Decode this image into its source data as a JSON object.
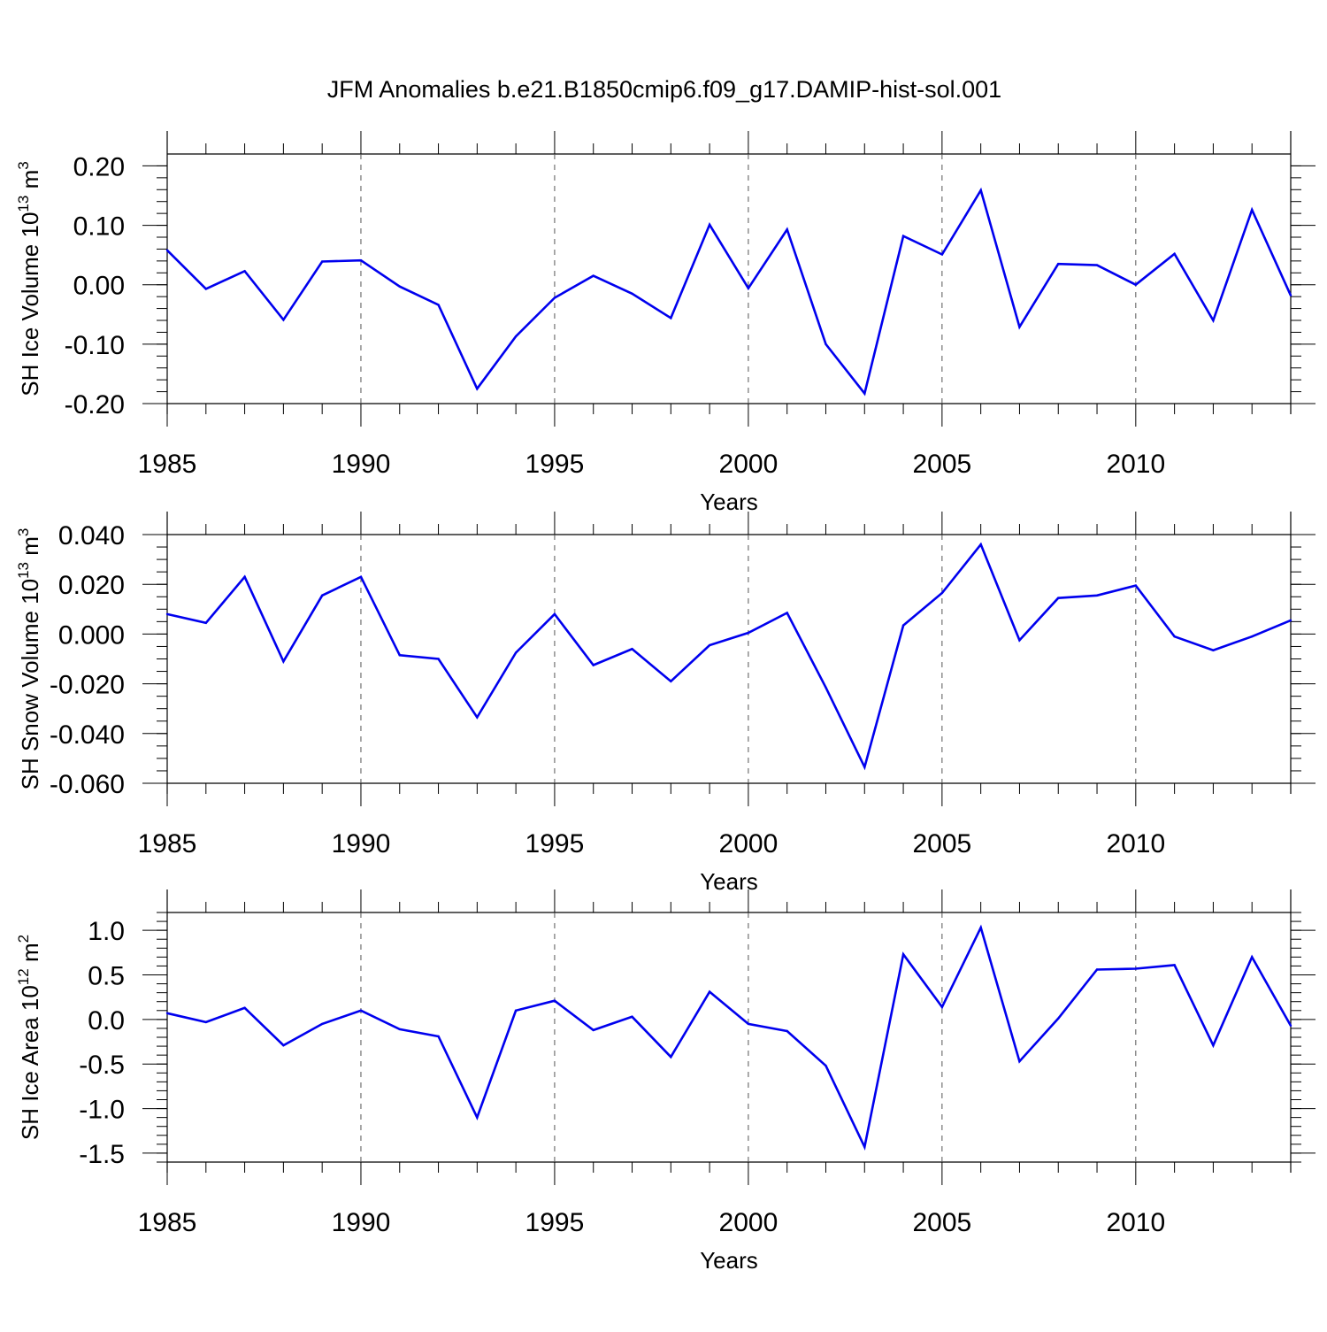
{
  "figure": {
    "title": "JFM Anomalies b.e21.B1850cmip6.f09_g17.DAMIP-hist-sol.001"
  },
  "colors": {
    "series": "#0000ee",
    "axis": "#000000",
    "grid": "#555555"
  },
  "chart_data": [
    {
      "type": "line",
      "id": "ice-volume",
      "title": "",
      "xlabel": "Years",
      "ylabel": "SH Ice Volume 10",
      "ylabel_exp": "13",
      "ylabel_unit": " m",
      "ylabel_unit_exp": "3",
      "xlim": [
        1985,
        2014
      ],
      "ylim": [
        -0.2,
        0.22
      ],
      "xticks": [
        1985,
        1990,
        1995,
        2000,
        2005,
        2010
      ],
      "xtick_labels": [
        "1985",
        "1990",
        "1995",
        "2000",
        "2005",
        "2010"
      ],
      "yticks": [
        -0.2,
        -0.1,
        0.0,
        0.1,
        0.2
      ],
      "ytick_labels": [
        "-0.20",
        "-0.10",
        "0.00",
        "0.10",
        "0.20"
      ],
      "grid_x": [
        1990,
        1995,
        2000,
        2005,
        2010
      ],
      "x": [
        1985,
        1986,
        1987,
        1988,
        1989,
        1990,
        1991,
        1992,
        1993,
        1994,
        1995,
        1996,
        1997,
        1998,
        1999,
        2000,
        2001,
        2002,
        2003,
        2004,
        2005,
        2006,
        2007,
        2008,
        2009,
        2010,
        2011,
        2012,
        2013,
        2014
      ],
      "series": [
        {
          "name": "SH Ice Volume",
          "values": [
            0.058,
            -0.007,
            0.023,
            -0.059,
            0.039,
            0.041,
            -0.003,
            -0.034,
            -0.175,
            -0.087,
            -0.022,
            0.015,
            -0.015,
            -0.056,
            0.101,
            -0.006,
            0.093,
            -0.1,
            -0.183,
            0.082,
            0.051,
            0.159,
            -0.071,
            0.035,
            0.033,
            0.0,
            0.052,
            -0.06,
            0.126,
            -0.018
          ]
        }
      ]
    },
    {
      "type": "line",
      "id": "snow-volume",
      "title": "",
      "xlabel": "Years",
      "ylabel": "SH Snow Volume 10",
      "ylabel_exp": "13",
      "ylabel_unit": " m",
      "ylabel_unit_exp": "3",
      "xlim": [
        1985,
        2014
      ],
      "ylim": [
        -0.06,
        0.04
      ],
      "xticks": [
        1985,
        1990,
        1995,
        2000,
        2005,
        2010
      ],
      "xtick_labels": [
        "1985",
        "1990",
        "1995",
        "2000",
        "2005",
        "2010"
      ],
      "yticks": [
        -0.06,
        -0.04,
        -0.02,
        0.0,
        0.02,
        0.04
      ],
      "ytick_labels": [
        "-0.060",
        "-0.040",
        "-0.020",
        "0.000",
        "0.020",
        "0.040"
      ],
      "grid_x": [
        1990,
        1995,
        2000,
        2005,
        2010
      ],
      "x": [
        1985,
        1986,
        1987,
        1988,
        1989,
        1990,
        1991,
        1992,
        1993,
        1994,
        1995,
        1996,
        1997,
        1998,
        1999,
        2000,
        2001,
        2002,
        2003,
        2004,
        2005,
        2006,
        2007,
        2008,
        2009,
        2010,
        2011,
        2012,
        2013,
        2014
      ],
      "series": [
        {
          "name": "SH Snow Volume",
          "values": [
            0.008,
            0.0045,
            0.023,
            -0.011,
            0.0155,
            0.023,
            -0.0085,
            -0.01,
            -0.0335,
            -0.0075,
            0.008,
            -0.0125,
            -0.006,
            -0.019,
            -0.0045,
            0.0005,
            0.0085,
            -0.0215,
            -0.0535,
            0.0035,
            0.0165,
            0.036,
            -0.0025,
            0.0145,
            0.0155,
            0.0195,
            -0.001,
            -0.0065,
            -0.001,
            0.0055
          ]
        }
      ]
    },
    {
      "type": "line",
      "id": "ice-area",
      "title": "",
      "xlabel": "Years",
      "ylabel": "SH Ice Area 10",
      "ylabel_exp": "12",
      "ylabel_unit": " m",
      "ylabel_unit_exp": "2",
      "xlim": [
        1985,
        2014
      ],
      "ylim": [
        -1.6,
        1.2
      ],
      "xticks": [
        1985,
        1990,
        1995,
        2000,
        2005,
        2010
      ],
      "xtick_labels": [
        "1985",
        "1990",
        "1995",
        "2000",
        "2005",
        "2010"
      ],
      "yticks": [
        -1.5,
        -1.0,
        -0.5,
        0.0,
        0.5,
        1.0
      ],
      "ytick_labels": [
        "-1.5",
        "-1.0",
        "-0.5",
        "0.0",
        "0.5",
        "1.0"
      ],
      "grid_x": [
        1990,
        1995,
        2000,
        2005,
        2010
      ],
      "x": [
        1985,
        1986,
        1987,
        1988,
        1989,
        1990,
        1991,
        1992,
        1993,
        1994,
        1995,
        1996,
        1997,
        1998,
        1999,
        2000,
        2001,
        2002,
        2003,
        2004,
        2005,
        2006,
        2007,
        2008,
        2009,
        2010,
        2011,
        2012,
        2013,
        2014
      ],
      "series": [
        {
          "name": "SH Ice Area",
          "values": [
            0.07,
            -0.03,
            0.13,
            -0.29,
            -0.05,
            0.1,
            -0.11,
            -0.19,
            -1.1,
            0.1,
            0.21,
            -0.12,
            0.03,
            -0.42,
            0.31,
            -0.05,
            -0.13,
            -0.52,
            -1.43,
            0.73,
            0.14,
            1.03,
            -0.47,
            0.01,
            0.56,
            0.57,
            0.61,
            -0.29,
            0.7,
            -0.07
          ]
        }
      ]
    }
  ]
}
